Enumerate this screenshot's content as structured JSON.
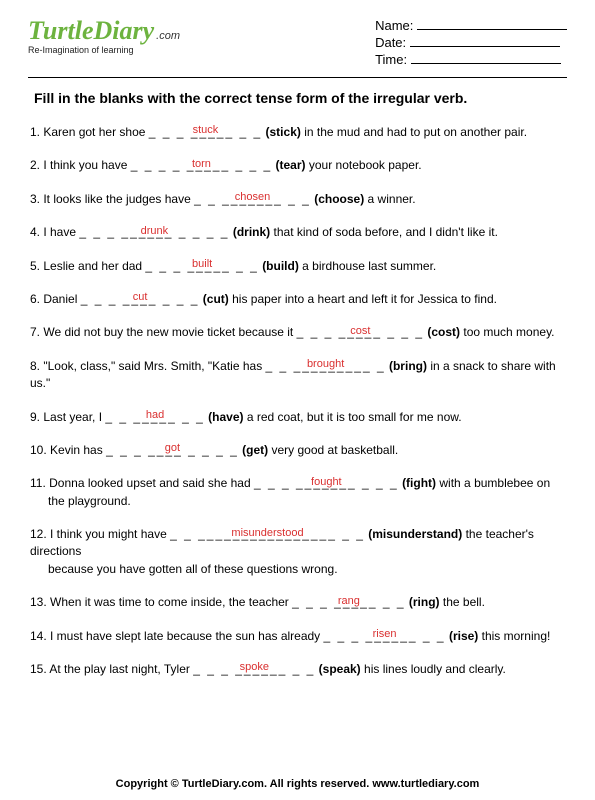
{
  "logo": {
    "pre": "Turtle",
    "post": "Diary",
    "dotcom": ".com",
    "tagline": "Re-Imagination of learning",
    "color_t": "#6db33f",
    "color_rest": "#6db33f"
  },
  "header": {
    "name_label": "Name:",
    "date_label": "Date:",
    "time_label": "Time:"
  },
  "instruction": "Fill in the blanks with the correct tense form of the irregular verb.",
  "questions": [
    {
      "n": "1.",
      "pre": "Karen got her shoe ",
      "dashes": "_ _ _ _____ _ _",
      "answer": "stuck",
      "hint": "(stick)",
      "post": " in the mud and had to put on another pair."
    },
    {
      "n": "2.",
      "pre": "I think you have ",
      "dashes": "_ _ _ _ _____ _ _ _",
      "answer": "torn",
      "hint": "(tear)",
      "post": " your notebook paper."
    },
    {
      "n": "3.",
      "pre": "It looks like the judges have ",
      "dashes": "_ _ _______ _ _",
      "answer": "chosen",
      "hint": "(choose)",
      "post": " a winner."
    },
    {
      "n": "4.",
      "pre": "I have ",
      "dashes": "_ _ _ ______ _ _ _ _",
      "answer": "drunk",
      "hint": "(drink)",
      "post": " that kind of soda before, and I didn't like it."
    },
    {
      "n": "5.",
      "pre": "Leslie and her dad ",
      "dashes": "_ _ _ _____ _ _",
      "answer": "built",
      "hint": "(build)",
      "post": " a birdhouse last summer."
    },
    {
      "n": "6.",
      "pre": "Daniel ",
      "dashes": "_ _ _ ____ _ _ _",
      "answer": "cut",
      "hint": "(cut)",
      "post": " his paper into a heart and left it for Jessica to find."
    },
    {
      "n": "7.",
      "pre": "We did not buy the new movie ticket because it ",
      "dashes": "_ _ _ _____ _ _ _",
      "answer": "cost",
      "hint": "(cost)",
      "post": " too much money."
    },
    {
      "n": "8.",
      "pre": "\"Look, class,\" said Mrs. Smith, \"Katie has ",
      "dashes": "_ _ _________ _",
      "answer": "brought",
      "hint": "(bring)",
      "post": " in a snack to share with us.\""
    },
    {
      "n": "9.",
      "pre": "Last year, I ",
      "dashes": "_ _ _____ _ _",
      "answer": "had",
      "hint": "(have)",
      "post": " a red coat, but it is too small for me now."
    },
    {
      "n": "10.",
      "pre": "Kevin has ",
      "dashes": "_ _ _ ____ _ _ _ _",
      "answer": "got",
      "hint": "(get)",
      "post": " very good at basketball."
    },
    {
      "n": "11.",
      "pre": "Donna looked upset and said she had ",
      "dashes": "_ _ _ _______ _ _ _",
      "answer": "fought",
      "hint": "(fight)",
      "post": " with a bumblebee on",
      "post2": "the playground."
    },
    {
      "n": "12.",
      "pre": "I think you might have ",
      "dashes": "_ _ ________________ _ _",
      "answer": "misunderstood",
      "hint": "(misunderstand)",
      "post": " the teacher's directions",
      "post2": "because you have gotten all of these questions wrong."
    },
    {
      "n": "13.",
      "pre": "When it was time to come inside, the teacher ",
      "dashes": "_ _ _ _____ _ _",
      "answer": "rang",
      "hint": "(ring)",
      "post": " the bell."
    },
    {
      "n": "14.",
      "pre": "I must have slept late because the sun has already ",
      "dashes": "_ _ _ ______ _ _",
      "answer": "risen",
      "hint": "(rise)",
      "post": " this morning!"
    },
    {
      "n": "15.",
      "pre": "At the play last night, Tyler ",
      "dashes": "_ _ _ ______ _ _",
      "answer": "spoke",
      "hint": "(speak)",
      "post": " his lines loudly and clearly."
    }
  ],
  "footer": "Copyright © TurtleDiary.com. All rights reserved.   www.turtlediary.com",
  "colors": {
    "answer": "#d93030",
    "text": "#000000",
    "background": "#ffffff"
  }
}
